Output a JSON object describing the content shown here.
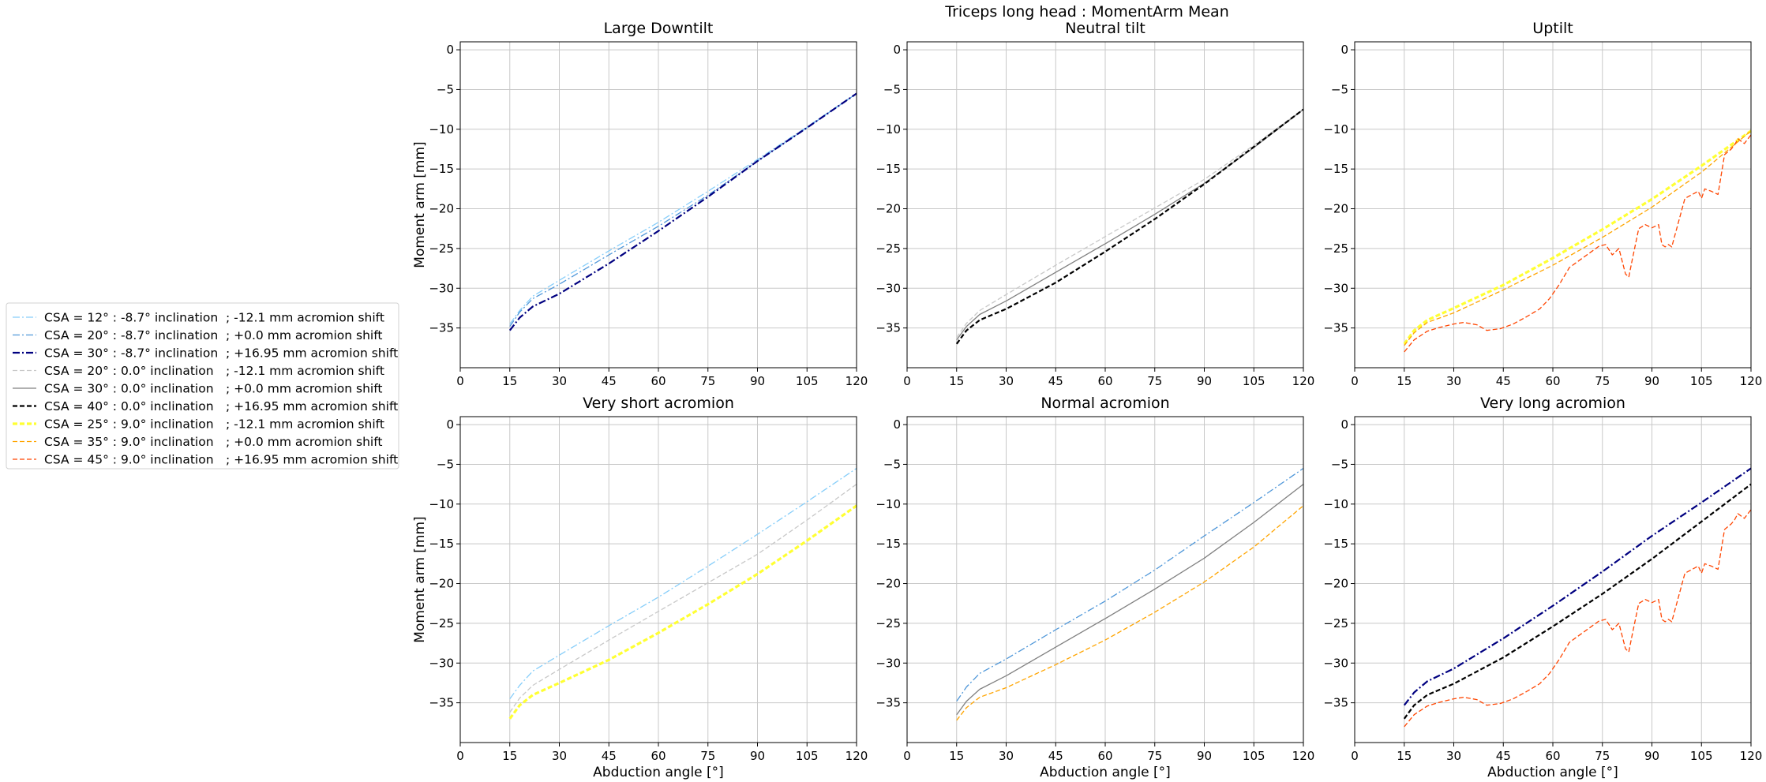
{
  "suptitle": "Triceps long head : MomentArm Mean",
  "colors": {
    "lightskyblue": "#87CEFA",
    "dodgerblue": "#4F97D9",
    "navy": "#000080",
    "lightgrey": "#C8C8C8",
    "grey": "#808080",
    "black": "#000000",
    "yellow": "#FFFF33",
    "orange": "#FFA500",
    "orangered": "#FF4500",
    "grid": "#C8C8C8"
  },
  "legend": {
    "placement": "center-left",
    "entries": [
      {
        "key": "s1",
        "label_a": "CSA = 12° : -8.7° inclination",
        "label_b": "; -12.1 mm acromion shift"
      },
      {
        "key": "s2",
        "label_a": "CSA = 20° : -8.7° inclination",
        "label_b": "; +0.0 mm acromion shift"
      },
      {
        "key": "s3",
        "label_a": "CSA = 30° : -8.7° inclination",
        "label_b": "; +16.95 mm acromion shift"
      },
      {
        "key": "s4",
        "label_a": "CSA = 20° : 0.0° inclination",
        "label_b": "; -12.1 mm acromion shift"
      },
      {
        "key": "s5",
        "label_a": "CSA = 30° : 0.0° inclination",
        "label_b": "; +0.0 mm acromion shift"
      },
      {
        "key": "s6",
        "label_a": "CSA = 40° : 0.0° inclination",
        "label_b": "; +16.95 mm acromion shift"
      },
      {
        "key": "s7",
        "label_a": "CSA = 25° : 9.0° inclination",
        "label_b": "; -12.1 mm acromion shift"
      },
      {
        "key": "s8",
        "label_a": "CSA = 35° : 9.0° inclination",
        "label_b": "; +0.0 mm acromion shift"
      },
      {
        "key": "s9",
        "label_a": "CSA = 45° : 9.0° inclination",
        "label_b": "; +16.95 mm acromion shift"
      }
    ]
  },
  "chart_data": {
    "type": "line",
    "xlabel": "Abduction angle [°]",
    "ylabel": "Moment arm [mm]",
    "xlim": [
      0,
      120
    ],
    "ylim": [
      -40,
      1
    ],
    "xticks": [
      "0",
      "15",
      "30",
      "45",
      "60",
      "75",
      "90",
      "105",
      "120"
    ],
    "yticks": [
      "0",
      "−5",
      "−10",
      "−15",
      "−20",
      "−25",
      "−30",
      "−35"
    ],
    "grid": true,
    "series": [
      {
        "key": "s1",
        "color": "lightskyblue",
        "dash": "dashdot",
        "width": "thin",
        "x": [
          15,
          18,
          22,
          30,
          45,
          60,
          75,
          90,
          105,
          120
        ],
        "y": [
          -34.5,
          -32.8,
          -31.0,
          -29.0,
          -25.3,
          -21.7,
          -17.8,
          -13.8,
          -9.7,
          -5.5
        ]
      },
      {
        "key": "s2",
        "color": "dodgerblue",
        "dash": "dashdot",
        "width": "thin",
        "x": [
          15,
          18,
          22,
          30,
          45,
          60,
          75,
          90,
          105,
          120
        ],
        "y": [
          -34.8,
          -33.0,
          -31.3,
          -29.5,
          -25.8,
          -22.2,
          -18.3,
          -14.0,
          -9.8,
          -5.5
        ]
      },
      {
        "key": "s3",
        "color": "navy",
        "dash": "dashdot",
        "width": "thick",
        "x": [
          15,
          18,
          22,
          30,
          45,
          60,
          75,
          90,
          105,
          120
        ],
        "y": [
          -35.3,
          -33.7,
          -32.3,
          -30.7,
          -26.9,
          -22.8,
          -18.5,
          -14.0,
          -9.8,
          -5.5
        ]
      },
      {
        "key": "s4",
        "color": "lightgrey",
        "dash": "dashed",
        "width": "thin",
        "x": [
          15,
          18,
          22,
          30,
          45,
          60,
          75,
          90,
          105,
          120
        ],
        "y": [
          -36.2,
          -34.4,
          -32.8,
          -30.8,
          -27.1,
          -23.5,
          -19.9,
          -16.3,
          -12.0,
          -7.5
        ]
      },
      {
        "key": "s5",
        "color": "grey",
        "dash": "solid",
        "width": "thin",
        "x": [
          15,
          18,
          22,
          30,
          45,
          60,
          75,
          90,
          105,
          120
        ],
        "y": [
          -36.5,
          -34.8,
          -33.3,
          -31.6,
          -28.0,
          -24.4,
          -20.7,
          -16.8,
          -12.3,
          -7.5
        ]
      },
      {
        "key": "s6",
        "color": "black",
        "dash": "dashed",
        "width": "thick",
        "x": [
          15,
          18,
          22,
          30,
          45,
          60,
          75,
          90,
          105,
          120
        ],
        "y": [
          -37.0,
          -35.3,
          -34.0,
          -32.6,
          -29.3,
          -25.4,
          -21.3,
          -16.9,
          -12.2,
          -7.5
        ]
      },
      {
        "key": "s7",
        "color": "yellow",
        "dash": "dashed",
        "width": "thicker",
        "x": [
          15,
          18,
          22,
          30,
          45,
          60,
          75,
          90,
          105,
          120
        ],
        "y": [
          -37.0,
          -35.3,
          -34.0,
          -32.5,
          -29.6,
          -26.2,
          -22.6,
          -18.8,
          -14.6,
          -10.2
        ]
      },
      {
        "key": "s8",
        "color": "orange",
        "dash": "dashed",
        "width": "thin",
        "x": [
          15,
          18,
          22,
          30,
          45,
          60,
          75,
          90,
          105,
          120
        ],
        "y": [
          -37.2,
          -35.6,
          -34.3,
          -33.1,
          -30.2,
          -27.1,
          -23.6,
          -19.8,
          -15.4,
          -10.2
        ]
      },
      {
        "key": "s9",
        "color": "orangered",
        "dash": "dashed",
        "width": "thin",
        "x": [
          15,
          18,
          22,
          26,
          30,
          33,
          37,
          40,
          44,
          48,
          52,
          56,
          59,
          62,
          65,
          70,
          74,
          76,
          78,
          80,
          82,
          83,
          84,
          86,
          88,
          90,
          92,
          93,
          94,
          95,
          96,
          100,
          104,
          105,
          106,
          108,
          110,
          112,
          114,
          115,
          116,
          118,
          120
        ],
        "y": [
          -38.0,
          -36.5,
          -35.4,
          -34.9,
          -34.5,
          -34.3,
          -34.6,
          -35.3,
          -35.1,
          -34.5,
          -33.6,
          -32.6,
          -31.3,
          -29.5,
          -27.4,
          -25.9,
          -24.7,
          -24.5,
          -25.8,
          -25.0,
          -28.2,
          -28.6,
          -26.5,
          -22.5,
          -22.0,
          -22.4,
          -22.0,
          -24.5,
          -24.8,
          -24.5,
          -24.8,
          -18.7,
          -17.8,
          -18.7,
          -17.5,
          -17.8,
          -18.2,
          -13.2,
          -12.5,
          -12.0,
          -11.2,
          -11.8,
          -10.7
        ]
      }
    ]
  },
  "panels": [
    {
      "title": "Large Downtilt",
      "series": [
        "s1",
        "s2",
        "s3"
      ],
      "show_ylabel": true,
      "show_xlabel": false
    },
    {
      "title": "Neutral tilt",
      "series": [
        "s4",
        "s5",
        "s6"
      ],
      "show_ylabel": false,
      "show_xlabel": false
    },
    {
      "title": "Uptilt",
      "series": [
        "s7",
        "s8",
        "s9"
      ],
      "show_ylabel": false,
      "show_xlabel": false
    },
    {
      "title": "Very short acromion",
      "series": [
        "s1",
        "s4",
        "s7"
      ],
      "show_ylabel": true,
      "show_xlabel": true
    },
    {
      "title": "Normal acromion",
      "series": [
        "s2",
        "s5",
        "s8"
      ],
      "show_ylabel": false,
      "show_xlabel": true
    },
    {
      "title": "Very long acromion",
      "series": [
        "s3",
        "s6",
        "s9"
      ],
      "show_ylabel": false,
      "show_xlabel": true
    }
  ]
}
